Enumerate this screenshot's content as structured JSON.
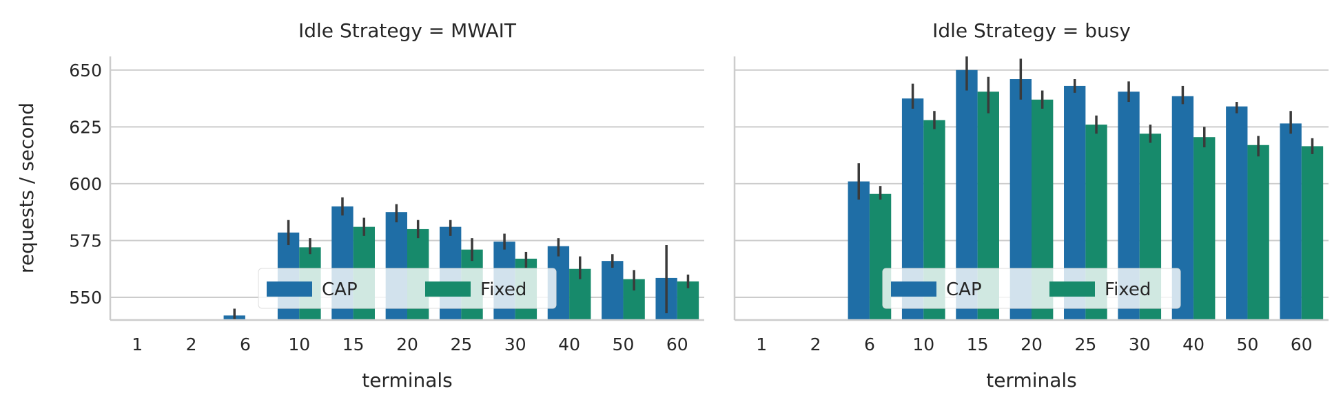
{
  "figure": {
    "ylabel": "requests / second",
    "xlabel": "terminals"
  },
  "colors": {
    "CAP": "#1f6ea6",
    "Fixed": "#178a6b",
    "errbar": "#3a3a3a",
    "grid": "#cccccc",
    "spine": "#cccccc"
  },
  "chart_data": [
    {
      "type": "bar",
      "title": "Idle Strategy = MWAIT",
      "xlabel": "terminals",
      "ylabel": "requests / second",
      "ylim": [
        540,
        656
      ],
      "yticks": [
        550,
        575,
        600,
        625,
        650
      ],
      "grid": "horizontal",
      "legend_placement": "lower center",
      "categories": [
        "1",
        "2",
        "6",
        "10",
        "15",
        "20",
        "25",
        "30",
        "40",
        "50",
        "60"
      ],
      "series": [
        {
          "name": "CAP",
          "values": [
            null,
            null,
            542,
            578.5,
            590,
            587.5,
            581,
            574.5,
            572.5,
            566,
            558.5
          ],
          "err_lo": [
            null,
            null,
            540,
            573,
            586,
            583,
            577,
            571,
            568,
            563,
            543
          ],
          "err_hi": [
            null,
            null,
            545,
            584,
            594,
            591,
            584,
            578,
            576,
            569,
            573
          ]
        },
        {
          "name": "Fixed",
          "values": [
            null,
            null,
            null,
            572,
            581,
            580,
            571,
            567,
            562.5,
            558,
            557
          ],
          "err_lo": [
            null,
            null,
            null,
            569,
            577,
            576,
            566,
            563,
            558,
            553,
            554
          ],
          "err_hi": [
            null,
            null,
            null,
            576,
            585,
            584,
            576,
            570,
            568,
            562,
            560
          ]
        }
      ]
    },
    {
      "type": "bar",
      "title": "Idle Strategy = busy",
      "xlabel": "terminals",
      "ylabel": "",
      "ylim": [
        540,
        656
      ],
      "yticks": [
        550,
        575,
        600,
        625,
        650
      ],
      "grid": "horizontal",
      "legend_placement": "lower center",
      "categories": [
        "1",
        "2",
        "6",
        "10",
        "15",
        "20",
        "25",
        "30",
        "40",
        "50",
        "60"
      ],
      "series": [
        {
          "name": "CAP",
          "values": [
            null,
            null,
            601,
            637.5,
            650,
            646,
            643,
            640.5,
            638.5,
            634,
            626.5
          ],
          "err_lo": [
            null,
            null,
            593,
            633,
            641,
            637,
            640,
            636,
            635,
            631,
            622
          ],
          "err_hi": [
            null,
            null,
            609,
            644,
            656,
            655,
            646,
            645,
            643,
            636,
            632
          ]
        },
        {
          "name": "Fixed",
          "values": [
            null,
            null,
            595.5,
            628,
            640.5,
            637,
            626,
            622,
            620.5,
            617,
            616.5
          ],
          "err_lo": [
            null,
            null,
            593,
            624,
            631,
            633,
            622,
            618,
            616,
            612,
            613
          ],
          "err_hi": [
            null,
            null,
            599,
            632,
            647,
            641,
            630,
            626,
            625,
            621,
            620
          ]
        }
      ]
    }
  ]
}
